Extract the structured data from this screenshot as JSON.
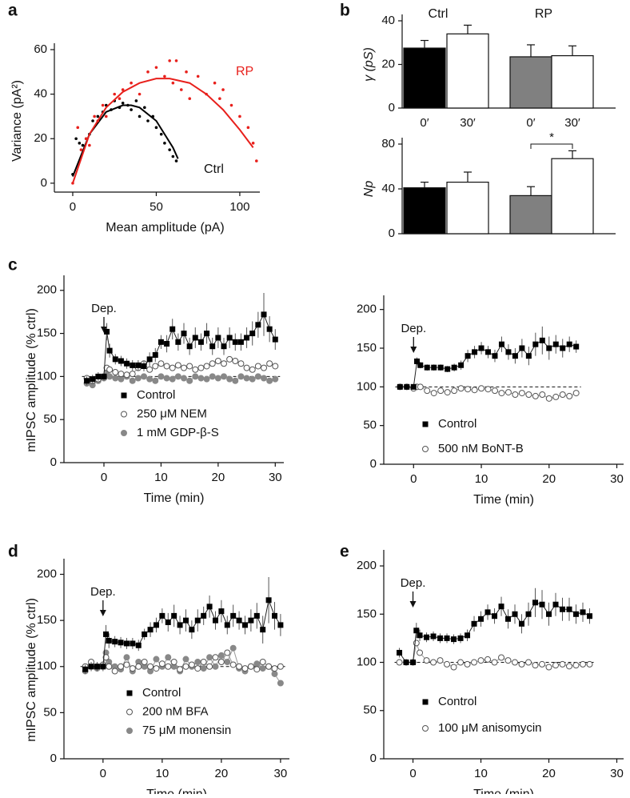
{
  "chart_data": [
    {
      "type": "scatter",
      "panel": "a",
      "xlabel": "Mean amplitude (pA)",
      "ylabel": "Variance (pA²)",
      "xlim": [
        -11,
        112
      ],
      "xticks": [
        0,
        50,
        100
      ],
      "ylim": [
        -4,
        60
      ],
      "yticks": [
        0,
        20,
        40,
        60
      ],
      "series": [
        {
          "name": "Ctrl",
          "color": "#000000",
          "x": [
            0,
            2,
            4,
            6,
            8,
            10,
            12,
            15,
            18,
            20,
            23,
            25,
            28,
            30,
            33,
            35,
            38,
            40,
            43,
            45,
            48,
            50,
            53,
            55,
            58,
            60,
            62
          ],
          "values": [
            4,
            20,
            18,
            17,
            20,
            22,
            28,
            30,
            32,
            35,
            33,
            37,
            34,
            36,
            35,
            33,
            37,
            30,
            34,
            28,
            30,
            25,
            22,
            18,
            15,
            12,
            10
          ],
          "fit_x": [
            0,
            10,
            20,
            30,
            35,
            40,
            50,
            60,
            63
          ],
          "fit_values": [
            3,
            22,
            32,
            35,
            35,
            34,
            28,
            16,
            11
          ]
        },
        {
          "name": "RP",
          "color": "#e8201c",
          "x": [
            0,
            3,
            5,
            8,
            10,
            13,
            15,
            18,
            20,
            25,
            28,
            30,
            35,
            40,
            45,
            50,
            55,
            58,
            60,
            62,
            65,
            68,
            70,
            75,
            80,
            85,
            88,
            90,
            95,
            100,
            105,
            108,
            110
          ],
          "values": [
            0,
            25,
            15,
            20,
            17,
            30,
            28,
            35,
            30,
            40,
            38,
            42,
            45,
            40,
            50,
            52,
            48,
            55,
            45,
            55,
            42,
            50,
            38,
            48,
            40,
            45,
            38,
            42,
            35,
            30,
            25,
            18,
            10
          ],
          "fit_x": [
            0,
            10,
            20,
            30,
            40,
            50,
            58,
            70,
            80,
            90,
            100,
            108
          ],
          "fit_values": [
            0,
            22,
            34,
            41,
            45,
            47,
            47,
            45,
            40,
            33,
            24,
            16
          ]
        }
      ]
    },
    {
      "type": "bar",
      "panel": "b",
      "ylabel": "γ (pS)",
      "groups": [
        "Ctrl",
        "RP"
      ],
      "categories": [
        "0′",
        "30′",
        "0′",
        "30′"
      ],
      "values": [
        27.5,
        34,
        23.5,
        24
      ],
      "errors": [
        3.5,
        4,
        5.5,
        4.5
      ],
      "colors": [
        "#000000",
        "#ffffff",
        "#808080",
        "#ffffff"
      ],
      "ylim": [
        0,
        40
      ],
      "yticks": [
        0,
        20,
        40
      ]
    },
    {
      "type": "bar",
      "ylabel": "Np",
      "annotation": "*",
      "values": [
        41,
        46,
        34,
        67
      ],
      "errors": [
        5,
        9,
        8,
        7
      ],
      "colors": [
        "#000000",
        "#ffffff",
        "#808080",
        "#ffffff"
      ],
      "ylim": [
        0,
        80
      ],
      "yticks": [
        0,
        40,
        80
      ]
    },
    {
      "type": "line",
      "panel": "c",
      "xlabel": "Time (min)",
      "ylabel": "mIPSC amplitude (% ctrl)",
      "annotation": {
        "text": "Dep.",
        "x": 0
      },
      "reference_line": 100,
      "xlim": [
        -7,
        31.5
      ],
      "xticks": [
        0,
        10,
        20,
        30
      ],
      "ylim": [
        0,
        210
      ],
      "yticks": [
        0,
        50,
        100,
        150,
        200
      ],
      "x": [
        -3,
        -2,
        -1,
        0,
        0.5,
        1,
        2,
        3,
        4,
        5,
        6,
        7,
        8,
        9,
        10,
        11,
        12,
        13,
        14,
        15,
        16,
        17,
        18,
        19,
        20,
        21,
        22,
        23,
        24,
        25,
        26,
        27,
        28,
        29,
        30
      ],
      "series": [
        {
          "name": "Control",
          "color": "#000000",
          "marker": "square",
          "values": [
            95,
            97,
            100,
            100,
            152,
            130,
            120,
            118,
            115,
            113,
            113,
            112,
            120,
            125,
            140,
            138,
            155,
            140,
            150,
            135,
            145,
            140,
            150,
            135,
            145,
            135,
            145,
            140,
            140,
            145,
            150,
            160,
            172,
            155,
            143
          ],
          "errors": [
            5,
            5,
            5,
            5,
            10,
            8,
            6,
            6,
            6,
            6,
            6,
            6,
            8,
            8,
            8,
            10,
            12,
            10,
            12,
            10,
            12,
            10,
            12,
            10,
            12,
            10,
            12,
            10,
            10,
            12,
            14,
            15,
            25,
            15,
            12
          ]
        },
        {
          "name": "250 μM NEM",
          "color": "#888888",
          "marker": "open-circle",
          "values": [
            98,
            95,
            97,
            100,
            110,
            108,
            105,
            103,
            102,
            103,
            110,
            115,
            108,
            112,
            115,
            112,
            110,
            113,
            110,
            112,
            108,
            110,
            112,
            115,
            118,
            115,
            120,
            118,
            115,
            110,
            108,
            112,
            110,
            115,
            112
          ]
        },
        {
          "name": "1 mM GDP-β-S",
          "color": "#888888",
          "marker": "filled-circle",
          "values": [
            92,
            90,
            95,
            98,
            105,
            100,
            98,
            97,
            100,
            95,
            98,
            100,
            97,
            95,
            100,
            98,
            97,
            100,
            98,
            95,
            100,
            98,
            97,
            100,
            98,
            100,
            97,
            95,
            100,
            98,
            97,
            100,
            98,
            95,
            97
          ]
        }
      ]
    },
    {
      "type": "line",
      "xlabel": "Time (min)",
      "annotation": {
        "text": "Dep.",
        "x": 0
      },
      "reference_line": 100,
      "xlim": [
        -4.4,
        31
      ],
      "xticks": [
        0,
        10,
        20,
        30
      ],
      "ylim": [
        0,
        210
      ],
      "yticks": [
        0,
        50,
        100,
        150,
        200
      ],
      "x": [
        -2,
        -1,
        0,
        0.5,
        1,
        2,
        3,
        4,
        5,
        6,
        7,
        8,
        9,
        10,
        11,
        12,
        13,
        14,
        15,
        16,
        17,
        18,
        19,
        20,
        21,
        22,
        23,
        24
      ],
      "series": [
        {
          "name": "Control",
          "color": "#000000",
          "marker": "square",
          "values": [
            100,
            100,
            100,
            133,
            128,
            125,
            125,
            125,
            123,
            125,
            128,
            140,
            145,
            150,
            145,
            140,
            155,
            145,
            140,
            150,
            140,
            155,
            160,
            150,
            155,
            150,
            155,
            152
          ],
          "errors": [
            3,
            3,
            3,
            5,
            4,
            4,
            4,
            4,
            4,
            5,
            6,
            8,
            8,
            8,
            8,
            8,
            10,
            10,
            10,
            12,
            12,
            15,
            18,
            15,
            12,
            12,
            10,
            8
          ]
        },
        {
          "name": "500 nM BoNT-B",
          "color": "#888888",
          "marker": "open-circle",
          "values": [
            100,
            100,
            98,
            100,
            100,
            95,
            92,
            95,
            93,
            95,
            98,
            97,
            96,
            98,
            97,
            95,
            92,
            93,
            90,
            92,
            90,
            88,
            90,
            85,
            87,
            90,
            88,
            92
          ]
        }
      ]
    },
    {
      "type": "line",
      "panel": "d",
      "xlabel": "Time (min)",
      "ylabel": "mIPSC amplitude (% ctrl)",
      "annotation": {
        "text": "Dep.",
        "x": 0
      },
      "reference_line": 100,
      "xlim": [
        -6.6,
        31.5
      ],
      "xticks": [
        0,
        10,
        20,
        30
      ],
      "ylim": [
        0,
        210
      ],
      "yticks": [
        0,
        50,
        100,
        150,
        200
      ],
      "x": [
        -3,
        -2,
        -1,
        0,
        0.5,
        1,
        2,
        3,
        4,
        5,
        6,
        7,
        8,
        9,
        10,
        11,
        12,
        13,
        14,
        15,
        16,
        17,
        18,
        19,
        20,
        21,
        22,
        23,
        24,
        25,
        26,
        27,
        28,
        29,
        30
      ],
      "series": [
        {
          "name": "Control",
          "color": "#000000",
          "marker": "square",
          "values": [
            97,
            100,
            100,
            100,
            135,
            128,
            127,
            126,
            125,
            125,
            123,
            135,
            140,
            145,
            155,
            148,
            155,
            145,
            150,
            140,
            150,
            155,
            165,
            150,
            160,
            145,
            155,
            150,
            145,
            150,
            155,
            140,
            172,
            155,
            145
          ],
          "errors": [
            5,
            5,
            5,
            5,
            10,
            8,
            6,
            6,
            6,
            6,
            6,
            6,
            8,
            8,
            8,
            10,
            12,
            10,
            12,
            10,
            12,
            10,
            12,
            10,
            12,
            10,
            12,
            10,
            10,
            12,
            14,
            15,
            25,
            15,
            12
          ]
        },
        {
          "name": "200 nM BFA",
          "color": "#888888",
          "marker": "open-circle",
          "values": [
            100,
            105,
            100,
            102,
            110,
            100,
            95,
            100,
            102,
            98,
            100,
            105,
            100,
            98,
            103,
            100,
            105,
            97,
            100,
            102,
            98,
            105,
            100,
            110,
            105,
            115,
            102,
            100,
            98,
            100,
            97,
            105,
            100,
            98,
            100
          ]
        },
        {
          "name": "75 μM monensin",
          "color": "#888888",
          "marker": "filled-circle",
          "values": [
            95,
            100,
            98,
            100,
            115,
            105,
            100,
            97,
            110,
            95,
            105,
            100,
            95,
            108,
            100,
            110,
            100,
            95,
            108,
            100,
            105,
            98,
            110,
            100,
            112,
            105,
            120,
            98,
            95,
            100,
            103,
            98,
            100,
            92,
            82
          ]
        }
      ]
    },
    {
      "type": "line",
      "panel": "e",
      "xlabel": "Time (min)",
      "annotation": {
        "text": "Dep.",
        "x": 0
      },
      "reference_line": 100,
      "xlim": [
        -4.3,
        31
      ],
      "xticks": [
        0,
        10,
        20,
        30
      ],
      "ylim": [
        0,
        210
      ],
      "yticks": [
        0,
        50,
        100,
        150,
        200
      ],
      "x": [
        -2,
        -1,
        0,
        0.5,
        1,
        2,
        3,
        4,
        5,
        6,
        7,
        8,
        9,
        10,
        11,
        12,
        13,
        14,
        15,
        16,
        17,
        18,
        19,
        20,
        21,
        22,
        23,
        24,
        25,
        26
      ],
      "series": [
        {
          "name": "Control",
          "color": "#000000",
          "marker": "square",
          "values": [
            110,
            100,
            100,
            133,
            128,
            126,
            127,
            125,
            125,
            124,
            125,
            128,
            140,
            145,
            152,
            148,
            158,
            145,
            150,
            140,
            150,
            162,
            160,
            150,
            160,
            155,
            155,
            150,
            152,
            148
          ],
          "errors": [
            5,
            3,
            3,
            8,
            6,
            5,
            5,
            5,
            5,
            5,
            5,
            6,
            8,
            8,
            8,
            8,
            10,
            10,
            10,
            10,
            12,
            15,
            15,
            12,
            12,
            12,
            12,
            10,
            10,
            8
          ]
        },
        {
          "name": "100 μM anisomycin",
          "color": "#888888",
          "marker": "open-circle",
          "values": [
            100,
            100,
            100,
            120,
            110,
            102,
            100,
            102,
            98,
            95,
            100,
            98,
            100,
            102,
            103,
            100,
            105,
            102,
            100,
            98,
            100,
            97,
            98,
            95,
            97,
            98,
            96,
            97,
            98,
            98
          ]
        }
      ]
    }
  ]
}
